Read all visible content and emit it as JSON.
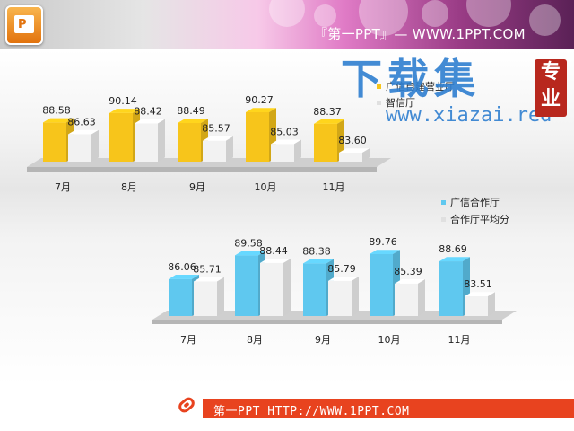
{
  "header": {
    "text": "『第一PPT』— WWW.1PPT.COM"
  },
  "logo": {
    "letter": "P"
  },
  "watermark": {
    "title": "下载集",
    "url": "www.xiazai.red",
    "seal": "专业"
  },
  "footer": {
    "text": "第一PPT HTTP://WWW.1PPT.COM"
  },
  "colors": {
    "yellow": "#f7c51b",
    "blue": "#5fc8ef",
    "gray": "#d9d9d9",
    "white_bar": "#f2f2f2",
    "accent": "#e8431f"
  },
  "chart_data": [
    {
      "type": "bar",
      "categories": [
        "7月",
        "8月",
        "9月",
        "10月",
        "11月"
      ],
      "series": [
        {
          "name": "广信自建营业厅",
          "values": [
            88.58,
            90.14,
            88.49,
            90.27,
            88.37
          ]
        },
        {
          "name": "智信厅",
          "values": [
            86.63,
            88.42,
            85.57,
            85.03,
            83.6
          ]
        }
      ],
      "value_labels": [
        [
          "88.58",
          "90.14",
          "88.49",
          "90.27",
          "88.37"
        ],
        [
          "86.63",
          "88.42",
          "85.57",
          "85.03",
          "83.60"
        ]
      ],
      "legend_position": "right",
      "grid": false
    },
    {
      "type": "bar",
      "categories": [
        "7月",
        "8月",
        "9月",
        "10月",
        "11月"
      ],
      "series": [
        {
          "name": "广信合作厅",
          "values": [
            86.06,
            89.58,
            88.38,
            89.76,
            88.69
          ]
        },
        {
          "name": "合作厅平均分",
          "values": [
            85.71,
            88.44,
            85.79,
            85.39,
            83.51
          ]
        }
      ],
      "value_labels": [
        [
          "86.06",
          "89.58",
          "88.38",
          "89.76",
          "88.69"
        ],
        [
          "85.71",
          "88.44",
          "85.79",
          "85.39",
          "83.51"
        ]
      ],
      "legend_position": "top-right",
      "grid": false
    }
  ]
}
